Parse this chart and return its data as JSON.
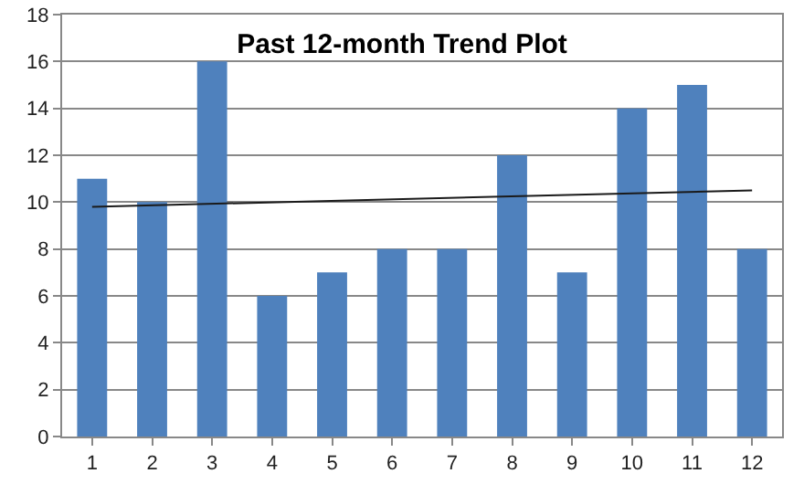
{
  "chart_data": {
    "type": "bar",
    "title": "Past 12-month Trend Plot",
    "x": [
      1,
      2,
      3,
      4,
      5,
      6,
      7,
      8,
      9,
      10,
      11,
      12
    ],
    "xlim": [
      0.5,
      12.5
    ],
    "xticks": [
      1,
      2,
      3,
      4,
      5,
      6,
      7,
      8,
      9,
      10,
      11,
      12
    ],
    "ylim": [
      0,
      18
    ],
    "yticks": [
      0,
      2,
      4,
      6,
      8,
      10,
      12,
      14,
      16,
      18
    ],
    "grid": "y",
    "series": [
      {
        "color": "#4f81bd",
        "values": [
          11,
          10,
          16,
          6,
          7,
          8,
          8,
          12,
          7,
          14,
          15,
          8
        ]
      },
      {
        "type": "line",
        "color": "#1a1a1a",
        "x": [
          1,
          12
        ],
        "values": [
          9.8,
          10.5
        ]
      }
    ]
  }
}
